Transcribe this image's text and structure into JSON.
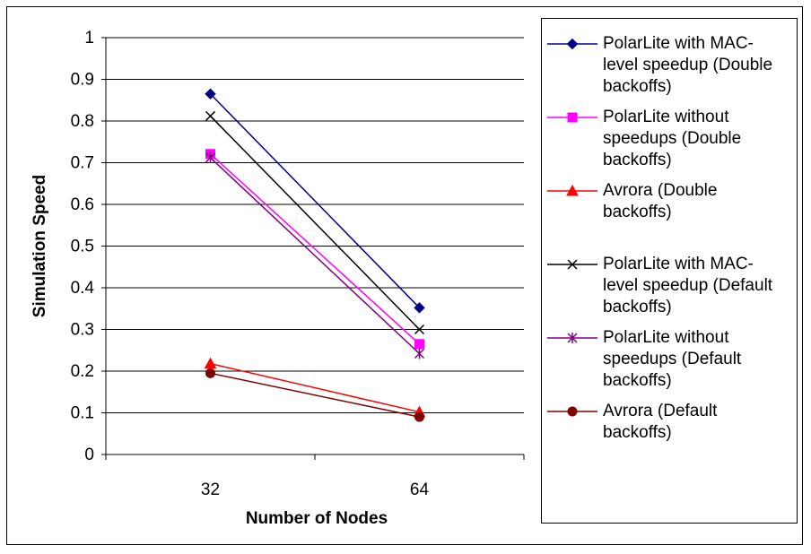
{
  "chart_data": {
    "type": "line",
    "title": "",
    "xlabel": "Number of Nodes",
    "ylabel": "Simulation Speed",
    "categories": [
      "32",
      "64"
    ],
    "ylim": [
      0,
      1
    ],
    "yticks": [
      "0",
      "0.1",
      "0.2",
      "0.3",
      "0.4",
      "0.5",
      "0.6",
      "0.7",
      "0.8",
      "0.9",
      "1"
    ],
    "grid": "horizontal",
    "legend_position": "right",
    "series": [
      {
        "name": "PolarLite with MAC-level speedup (Double backoffs)",
        "values": [
          0.865,
          0.352
        ],
        "color": "#00008B",
        "marker": "diamond"
      },
      {
        "name": "PolarLite without speedups (Double backoffs)",
        "values": [
          0.721,
          0.265
        ],
        "color": "#FF00FF",
        "marker": "square"
      },
      {
        "name": "Avrora (Double backoffs)",
        "values": [
          0.218,
          0.102
        ],
        "color": "#FF0000",
        "marker": "triangle"
      },
      {
        "name": "PolarLite with MAC-level speedup (Default backoffs)",
        "values": [
          0.812,
          0.3
        ],
        "color": "#000000",
        "marker": "x"
      },
      {
        "name": "PolarLite without speedups (Default backoffs)",
        "values": [
          0.712,
          0.242
        ],
        "color": "#800080",
        "marker": "star"
      },
      {
        "name": "Avrora (Default backoffs)",
        "values": [
          0.195,
          0.09
        ],
        "color": "#800000",
        "marker": "circle"
      }
    ]
  },
  "legend": {
    "items": [
      {
        "lines": [
          "PolarLite with MAC-",
          "level speedup (Double",
          "backoffs)"
        ]
      },
      {
        "lines": [
          "PolarLite without",
          "speedups (Double",
          "backoffs)"
        ]
      },
      {
        "lines": [
          "Avrora (Double",
          "backoffs)"
        ]
      },
      {
        "lines": [
          "PolarLite with MAC-",
          "level speedup (Default",
          "backoffs)"
        ]
      },
      {
        "lines": [
          "PolarLite without",
          "speedups (Default",
          "backoffs)"
        ]
      },
      {
        "lines": [
          "Avrora (Default",
          "backoffs)"
        ]
      }
    ]
  }
}
